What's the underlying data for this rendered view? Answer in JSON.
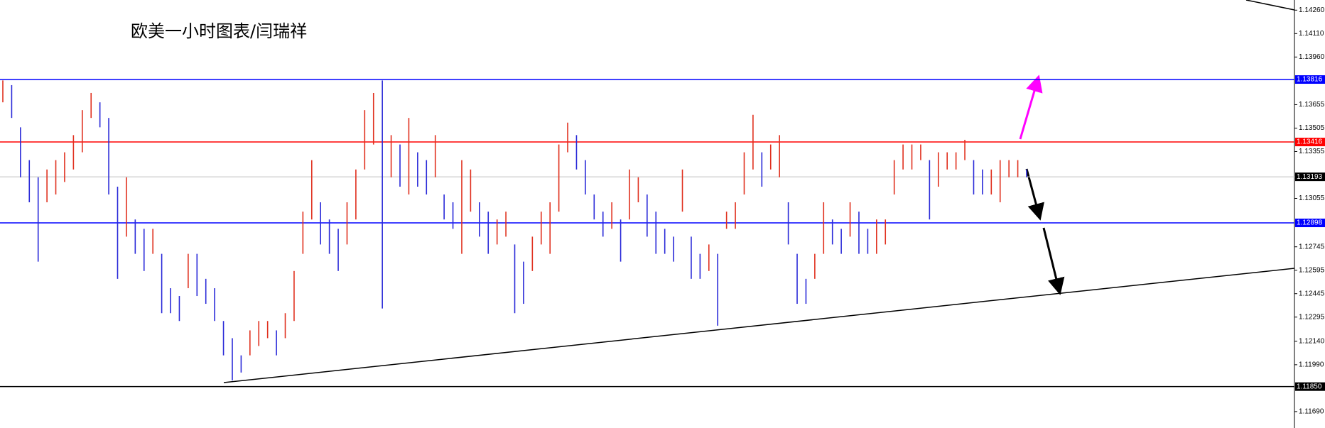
{
  "chart_data": {
    "type": "ohlc",
    "title": "欧美一小时图表/闫瑞祥",
    "ylim": [
      1.11585,
      1.14325
    ],
    "yticks": [
      {
        "value": 1.1426,
        "label": "1.14260"
      },
      {
        "value": 1.1411,
        "label": "1.14110"
      },
      {
        "value": 1.1396,
        "label": "1.13960"
      },
      {
        "value": 1.13655,
        "label": "1.13655"
      },
      {
        "value": 1.13505,
        "label": "1.13505"
      },
      {
        "value": 1.13355,
        "label": "1.13355"
      },
      {
        "value": 1.13055,
        "label": "1.13055"
      },
      {
        "value": 1.12745,
        "label": "1.12745"
      },
      {
        "value": 1.12595,
        "label": "1.12595"
      },
      {
        "value": 1.12445,
        "label": "1.12445"
      },
      {
        "value": 1.12295,
        "label": "1.12295"
      },
      {
        "value": 1.1214,
        "label": "1.12140"
      },
      {
        "value": 1.1199,
        "label": "1.11990"
      },
      {
        "value": 1.1169,
        "label": "1.11690"
      }
    ],
    "levels": [
      {
        "value": 1.13816,
        "label": "1.13816",
        "color": "#0000ff"
      },
      {
        "value": 1.13416,
        "label": "1.13416",
        "color": "#ff0000"
      },
      {
        "value": 1.13193,
        "label": "1.13193",
        "color": "#c0c0c0"
      },
      {
        "value": 1.12898,
        "label": "1.12898",
        "color": "#0000ff"
      },
      {
        "value": 1.1185,
        "label": "1.11850",
        "color": "#000000"
      }
    ],
    "up_color": "#e0301e",
    "down_color": "#2a2ad8",
    "high": [
      1.1381,
      1.1378,
      1.1351,
      1.133,
      1.1319,
      1.1324,
      1.133,
      1.1335,
      1.1346,
      1.1362,
      1.1373,
      1.1367,
      1.1357,
      1.1313,
      1.1319,
      1.1292,
      1.1286,
      1.1286,
      1.127,
      1.1248,
      1.1243,
      1.127,
      1.127,
      1.1254,
      1.1248,
      1.1227,
      1.1216,
      1.1205,
      1.1221,
      1.1227,
      1.1227,
      1.1221,
      1.1232,
      1.1259,
      1.1297,
      1.133,
      1.1303,
      1.1292,
      1.1286,
      1.1303,
      1.1324,
      1.1362,
      1.1373,
      1.1381,
      1.1346,
      1.134,
      1.1357,
      1.1335,
      1.133,
      1.1346,
      1.1308,
      1.1303,
      1.133,
      1.1324,
      1.1303,
      1.1297,
      1.1292,
      1.1297,
      1.1276,
      1.1265,
      1.1281,
      1.1297,
      1.1303,
      1.134,
      1.1354,
      1.1346,
      1.133,
      1.1308,
      1.1297,
      1.1303,
      1.1292,
      1.1324,
      1.1319,
      1.1308,
      1.1297,
      1.1286,
      1.1281,
      1.1324,
      1.1281,
      1.127,
      1.1276,
      1.127,
      1.1297,
      1.1303,
      1.1335,
      1.1359,
      1.1335,
      1.134,
      1.1346,
      1.1303,
      1.127,
      1.1254,
      1.127,
      1.1303,
      1.1292,
      1.1286,
      1.1303,
      1.1297,
      1.1286,
      1.1292,
      1.1292,
      1.133,
      1.134,
      1.134,
      1.134,
      1.133,
      1.1335,
      1.1335,
      1.1335,
      1.1343,
      1.133,
      1.1324,
      1.1324,
      1.133,
      1.133,
      1.133,
      1.1324
    ],
    "low": [
      1.1367,
      1.1357,
      1.1319,
      1.1303,
      1.1265,
      1.1303,
      1.1308,
      1.1316,
      1.1324,
      1.1335,
      1.1357,
      1.1351,
      1.1308,
      1.1254,
      1.1281,
      1.127,
      1.1259,
      1.127,
      1.1232,
      1.1232,
      1.1227,
      1.1248,
      1.1243,
      1.1238,
      1.1227,
      1.1205,
      1.1189,
      1.1194,
      1.1205,
      1.1211,
      1.1216,
      1.1205,
      1.1216,
      1.1227,
      1.127,
      1.1292,
      1.1276,
      1.127,
      1.1259,
      1.1276,
      1.1292,
      1.1324,
      1.134,
      1.1235,
      1.1319,
      1.1313,
      1.1308,
      1.1313,
      1.1308,
      1.1319,
      1.1292,
      1.1286,
      1.127,
      1.1297,
      1.1281,
      1.127,
      1.1276,
      1.1281,
      1.1232,
      1.1238,
      1.1259,
      1.1276,
      1.127,
      1.1297,
      1.1335,
      1.1324,
      1.1308,
      1.1292,
      1.1281,
      1.1286,
      1.1265,
      1.1292,
      1.1303,
      1.1281,
      1.127,
      1.127,
      1.1265,
      1.1297,
      1.1254,
      1.1254,
      1.1259,
      1.1224,
      1.1286,
      1.1286,
      1.1308,
      1.1324,
      1.1313,
      1.1324,
      1.1319,
      1.1276,
      1.1238,
      1.1238,
      1.1254,
      1.127,
      1.1276,
      1.127,
      1.1281,
      1.127,
      1.127,
      1.127,
      1.1276,
      1.1308,
      1.1324,
      1.1324,
      1.133,
      1.1292,
      1.1313,
      1.1324,
      1.1324,
      1.133,
      1.1308,
      1.1308,
      1.1308,
      1.1303,
      1.1319,
      1.1319,
      1.1319
    ]
  }
}
